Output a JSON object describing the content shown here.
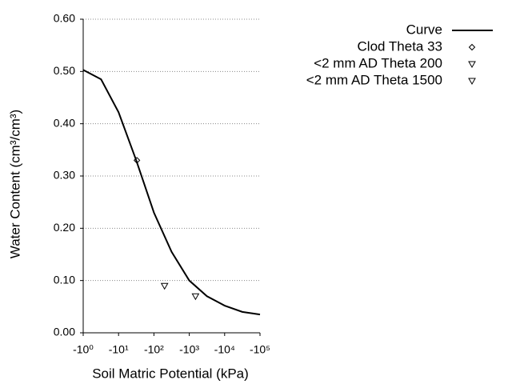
{
  "chart_data": {
    "type": "line",
    "xlabel": "Soil Matric Potential (kPa)",
    "ylabel": "Water Content (cm³/cm³)",
    "xscale": "log",
    "xlim": [
      1,
      100000
    ],
    "xticks": [
      {
        "value": 1,
        "label": "-10⁰"
      },
      {
        "value": 10,
        "label": "-10¹"
      },
      {
        "value": 100,
        "label": "-10²"
      },
      {
        "value": 1000,
        "label": "-10³"
      },
      {
        "value": 10000,
        "label": "-10⁴"
      },
      {
        "value": 100000,
        "label": "-10⁵"
      }
    ],
    "ylim": [
      0,
      0.6
    ],
    "yticks": [
      {
        "value": 0,
        "label": "0.00"
      },
      {
        "value": 0.1,
        "label": "0.10"
      },
      {
        "value": 0.2,
        "label": "0.20"
      },
      {
        "value": 0.3,
        "label": "0.30"
      },
      {
        "value": 0.4,
        "label": "0.40"
      },
      {
        "value": 0.5,
        "label": "0.50"
      },
      {
        "value": 0.6,
        "label": "0.60"
      }
    ],
    "grid": true,
    "legend": "top-right",
    "series": [
      {
        "name": "Curve",
        "color": "#000000",
        "marker": "none",
        "x": [
          1,
          3.2,
          10,
          31.6,
          100,
          316,
          1000,
          3160,
          10000,
          31600,
          100000
        ],
        "values": [
          0.503,
          0.485,
          0.422,
          0.33,
          0.23,
          0.155,
          0.1,
          0.07,
          0.052,
          0.04,
          0.035
        ]
      },
      {
        "name": "Clod Theta 33",
        "color": "#000000",
        "marker": "diamond",
        "x": [
          33
        ],
        "values": [
          0.33
        ]
      },
      {
        "name": "<2 mm AD Theta 200",
        "color": "#000000",
        "marker": "triangle-down",
        "x": [
          200
        ],
        "values": [
          0.09
        ]
      },
      {
        "name": "<2 mm AD Theta 1500",
        "color": "#000000",
        "marker": "triangle-down",
        "x": [
          1500
        ],
        "values": [
          0.07
        ]
      }
    ]
  }
}
